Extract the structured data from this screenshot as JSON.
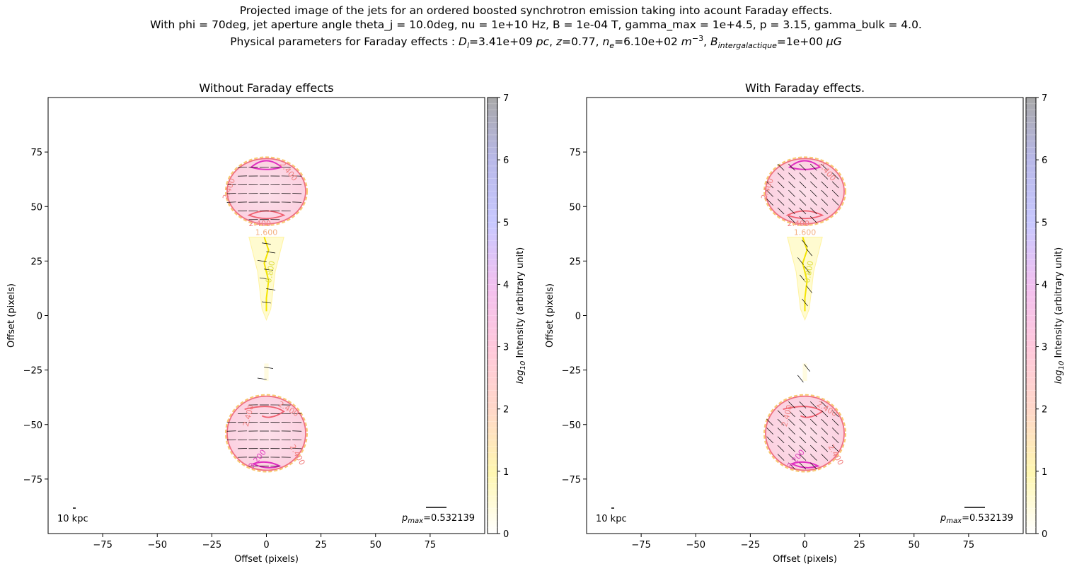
{
  "figure": {
    "title_line1": "Projected image of the jets for an ordered boosted synchrotron emission taking into acount Faraday effects.",
    "title_line2": "With phi = 70deg, jet aperture angle theta_j = 10.0deg, nu = 1e+10 Hz, B = 1e-04 T, gamma_max = 1e+4.5, p = 3.15, gamma_bulk = 4.0.",
    "title_line3_prefix": "Physical parameters for Faraday effects : ",
    "title_line3_params": [
      {
        "sym": "D",
        "sub": "l",
        "val": "=3.41e+09 ",
        "unit": "pc",
        "sup": ""
      },
      {
        "sym": "z",
        "sub": "",
        "val": "=0.77, ",
        "unit": "",
        "sup": ""
      },
      {
        "sym": "n",
        "sub": "e",
        "val": "=6.10e+02 ",
        "unit": "m",
        "sup": "−3"
      },
      {
        "sym": "B",
        "sub": "intergalactique",
        "val": "=1e+00 ",
        "unit": "μG",
        "sup": ""
      }
    ]
  },
  "chart_data": [
    {
      "type": "heatmap",
      "title": "Without Faraday effects",
      "xlabel": "Offset (pixels)",
      "ylabel": "Offset (pixels)",
      "xlim": [
        -100,
        100
      ],
      "ylim": [
        -100,
        100
      ],
      "xticks": [
        -75,
        -50,
        -25,
        0,
        25,
        50,
        75
      ],
      "yticks": [
        -75,
        -50,
        -25,
        0,
        25,
        50,
        75
      ],
      "scale_label": "10 kpc",
      "pmax_label": "=0.532139",
      "pmax_sym": "p",
      "pmax_sub": "max",
      "colorbar": {
        "label_prefix": "log",
        "label_sub": "10",
        "label_suffix": " Intensity (arbitrary unit)",
        "ticks": [
          0,
          1,
          2,
          3,
          4,
          5,
          6,
          7
        ],
        "range": [
          0,
          7
        ]
      },
      "contour_labels": [
        {
          "text": "2.400",
          "x": 10,
          "y": 66,
          "color": "#f08080",
          "rot": 50
        },
        {
          "text": "2.400",
          "x": -17,
          "y": 58,
          "color": "#f08080",
          "rot": -70
        },
        {
          "text": "2.400",
          "x": -3,
          "y": 42,
          "color": "#f08080",
          "rot": 0
        },
        {
          "text": "1.600",
          "x": 0,
          "y": 38,
          "color": "#f4b183",
          "rot": 0
        },
        {
          "text": "0.800",
          "x": 2,
          "y": 20,
          "color": "#e0e04a",
          "rot": -80
        },
        {
          "text": "2.400",
          "x": 10,
          "y": -43,
          "color": "#f08080",
          "rot": 30
        },
        {
          "text": "2.400",
          "x": -8,
          "y": -46,
          "color": "#f08080",
          "rot": -75
        },
        {
          "text": "3.200",
          "x": -4,
          "y": -66,
          "color": "#e040c0",
          "rot": -50
        },
        {
          "text": "2.400",
          "x": 14,
          "y": -64,
          "color": "#f08080",
          "rot": 60
        }
      ],
      "vectors": "horizontal"
    },
    {
      "type": "heatmap",
      "title": "With Faraday effects.",
      "xlabel": "Offset (pixels)",
      "ylabel": "Offset (pixels)",
      "xlim": [
        -100,
        100
      ],
      "ylim": [
        -100,
        100
      ],
      "xticks": [
        -75,
        -50,
        -25,
        0,
        25,
        50,
        75
      ],
      "yticks": [
        -75,
        -50,
        -25,
        0,
        25,
        50,
        75
      ],
      "scale_label": "10 kpc",
      "pmax_label": "=0.532139",
      "pmax_sym": "p",
      "pmax_sub": "max",
      "colorbar": {
        "label_prefix": "log",
        "label_sub": "10",
        "label_suffix": " Intensity (arbitrary unit)",
        "ticks": [
          0,
          1,
          2,
          3,
          4,
          5,
          6,
          7
        ],
        "range": [
          0,
          7
        ]
      },
      "contour_labels": [
        {
          "text": "2.400",
          "x": 10,
          "y": 66,
          "color": "#f08080",
          "rot": 50
        },
        {
          "text": "2.400",
          "x": -17,
          "y": 58,
          "color": "#f08080",
          "rot": -70
        },
        {
          "text": "2.400",
          "x": -3,
          "y": 42,
          "color": "#f08080",
          "rot": 0
        },
        {
          "text": "1.600",
          "x": 0,
          "y": 38,
          "color": "#f4b183",
          "rot": 0
        },
        {
          "text": "0.800",
          "x": 2,
          "y": 20,
          "color": "#e0e04a",
          "rot": -80
        },
        {
          "text": "2.400",
          "x": 10,
          "y": -43,
          "color": "#f08080",
          "rot": 30
        },
        {
          "text": "2.400",
          "x": -8,
          "y": -46,
          "color": "#f08080",
          "rot": -75
        },
        {
          "text": "3.200",
          "x": -4,
          "y": -66,
          "color": "#e040c0",
          "rot": -50
        },
        {
          "text": "2.400",
          "x": 14,
          "y": -64,
          "color": "#f08080",
          "rot": 60
        }
      ],
      "vectors": "diagonal"
    }
  ]
}
